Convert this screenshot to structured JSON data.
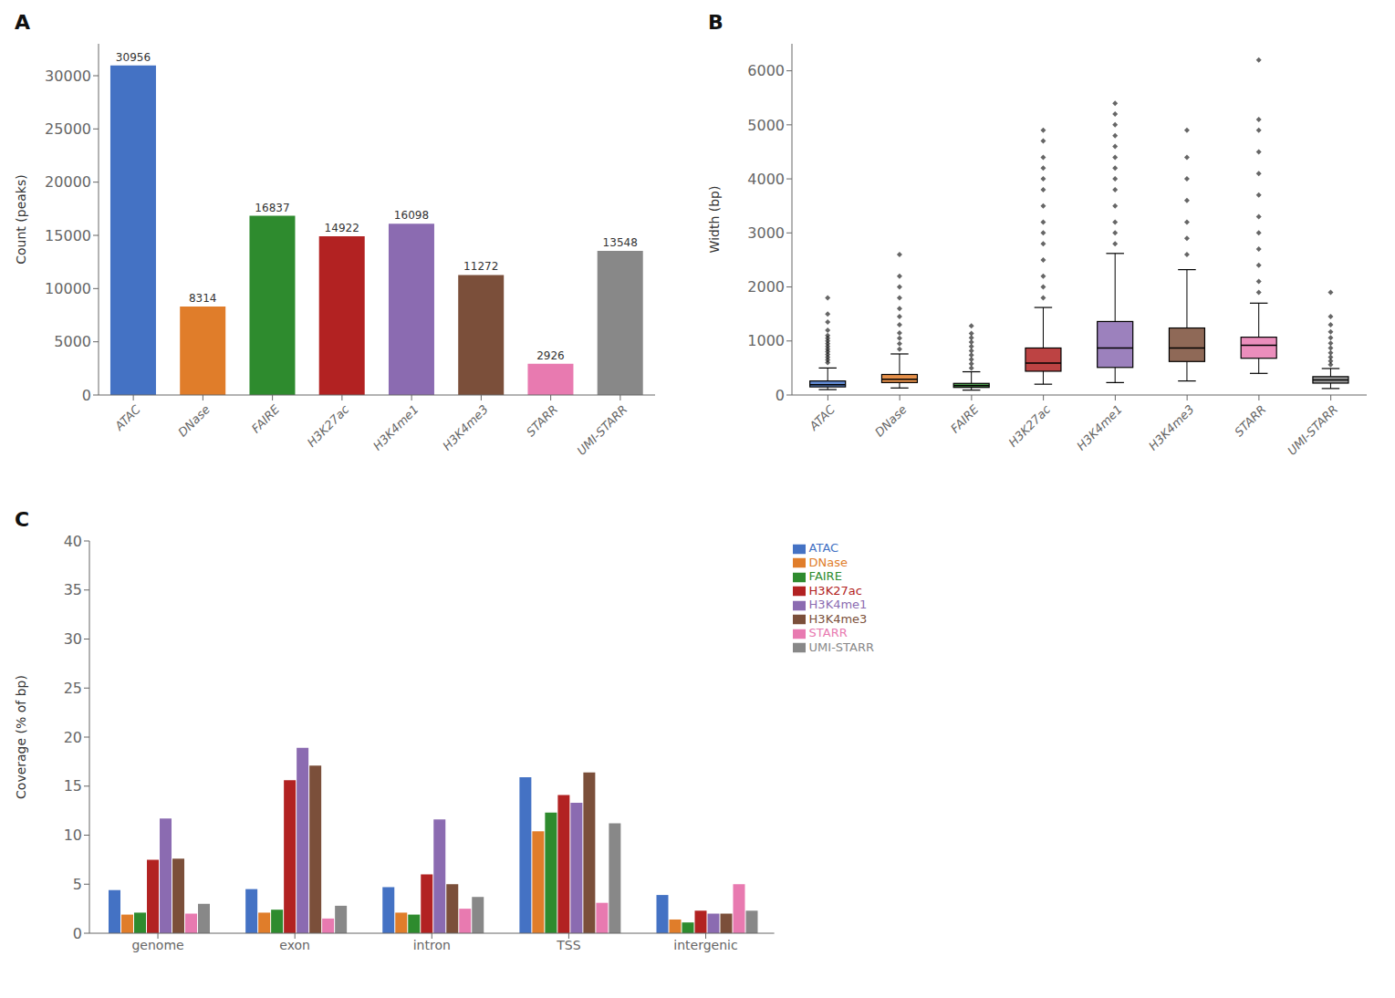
{
  "chart_data": [
    {
      "type": "bar",
      "title": "A",
      "categories": [
        "ATAC",
        "DNase",
        "FAIRE",
        "H3K27ac",
        "H3K4me1",
        "H3K4me3",
        "STARR",
        "UMI-STARR"
      ],
      "values": [
        30956,
        8314,
        16837,
        14922,
        16098,
        11272,
        2926,
        13548
      ],
      "colors": [
        "#4472c4",
        "#e07d2a",
        "#2e8b2e",
        "#b22222",
        "#8b6bb1",
        "#7b4f3a",
        "#e87ab0",
        "#888888"
      ],
      "ylabel": "Count (peaks)",
      "ylim": [
        0,
        33000
      ],
      "yticks": [
        0,
        5000,
        10000,
        15000,
        20000,
        25000,
        30000
      ],
      "data_labels": true,
      "grid": false
    },
    {
      "type": "box",
      "title": "B",
      "categories": [
        "ATAC",
        "DNase",
        "FAIRE",
        "H3K27ac",
        "H3K4me1",
        "H3K4me3",
        "STARR",
        "UMI-STARR"
      ],
      "colors": [
        "#4472c4",
        "#e07d2a",
        "#2e8b2e",
        "#b22222",
        "#8b6bb1",
        "#7b4f3a",
        "#e87ab0",
        "#888888"
      ],
      "stats": [
        {
          "median": 190,
          "q1": 150,
          "q3": 260,
          "whisker_low": 100,
          "whisker_high": 500,
          "fliers": [
            600,
            650,
            700,
            750,
            800,
            850,
            900,
            950,
            1000,
            1050,
            1100,
            1200,
            1350,
            1500,
            1800
          ]
        },
        {
          "median": 290,
          "q1": 230,
          "q3": 380,
          "whisker_low": 130,
          "whisker_high": 760,
          "fliers": [
            850,
            950,
            1050,
            1150,
            1300,
            1450,
            1600,
            1800,
            2000,
            2200,
            2600
          ]
        },
        {
          "median": 175,
          "q1": 140,
          "q3": 215,
          "whisker_low": 90,
          "whisker_high": 430,
          "fliers": [
            500,
            580,
            660,
            740,
            820,
            900,
            980,
            1060,
            1140,
            1280
          ]
        },
        {
          "median": 590,
          "q1": 440,
          "q3": 870,
          "whisker_low": 200,
          "whisker_high": 1620,
          "fliers": [
            1800,
            2000,
            2200,
            2500,
            2800,
            3000,
            3200,
            3500,
            3800,
            4000,
            4200,
            4400,
            4700,
            4900
          ]
        },
        {
          "median": 870,
          "q1": 510,
          "q3": 1360,
          "whisker_low": 230,
          "whisker_high": 2620,
          "fliers": [
            2800,
            3000,
            3200,
            3500,
            3800,
            4000,
            4200,
            4400,
            4600,
            4800,
            5000,
            5200,
            5400
          ]
        },
        {
          "median": 870,
          "q1": 620,
          "q3": 1240,
          "whisker_low": 260,
          "whisker_high": 2320,
          "fliers": [
            2600,
            2900,
            3200,
            3600,
            4000,
            4400,
            4900
          ]
        },
        {
          "median": 920,
          "q1": 680,
          "q3": 1070,
          "whisker_low": 400,
          "whisker_high": 1700,
          "fliers": [
            1900,
            2100,
            2400,
            2700,
            3000,
            3300,
            3700,
            4100,
            4500,
            4900,
            5100,
            6200
          ]
        },
        {
          "median": 280,
          "q1": 220,
          "q3": 340,
          "whisker_low": 120,
          "whisker_high": 490,
          "fliers": [
            560,
            630,
            700,
            780,
            870,
            960,
            1060,
            1170,
            1300,
            1450,
            1900
          ]
        }
      ],
      "ylabel": "Width (bp)",
      "ylim": [
        0,
        6500
      ],
      "yticks": [
        0,
        1000,
        2000,
        3000,
        4000,
        5000,
        6000
      ],
      "grid": false
    },
    {
      "type": "bar",
      "title": "C",
      "categories": [
        "genome",
        "exon",
        "intron",
        "TSS",
        "intergenic"
      ],
      "series": [
        {
          "name": "ATAC",
          "color": "#4472c4",
          "values": [
            4.4,
            4.5,
            4.7,
            15.9,
            3.9
          ]
        },
        {
          "name": "DNase",
          "color": "#e07d2a",
          "values": [
            1.9,
            2.1,
            2.1,
            10.4,
            1.4
          ]
        },
        {
          "name": "FAIRE",
          "color": "#2e8b2e",
          "values": [
            2.1,
            2.4,
            1.9,
            12.3,
            1.1
          ]
        },
        {
          "name": "H3K27ac",
          "color": "#b22222",
          "values": [
            7.5,
            15.6,
            6.0,
            14.1,
            2.3
          ]
        },
        {
          "name": "H3K4me1",
          "color": "#8b6bb1",
          "values": [
            11.7,
            18.9,
            11.6,
            13.3,
            2.0
          ]
        },
        {
          "name": "H3K4me3",
          "color": "#7b4f3a",
          "values": [
            7.6,
            17.1,
            5.0,
            16.4,
            2.0
          ]
        },
        {
          "name": "STARR",
          "color": "#e87ab0",
          "values": [
            2.0,
            1.5,
            2.5,
            3.1,
            5.0
          ]
        },
        {
          "name": "UMI-STARR",
          "color": "#888888",
          "values": [
            3.0,
            2.8,
            3.7,
            11.2,
            2.3
          ]
        }
      ],
      "ylabel": "Coverage (% of bp)",
      "ylim": [
        0,
        40
      ],
      "yticks": [
        0,
        5,
        10,
        15,
        20,
        25,
        30,
        35,
        40
      ],
      "legend": "upper right",
      "grid": false
    }
  ]
}
